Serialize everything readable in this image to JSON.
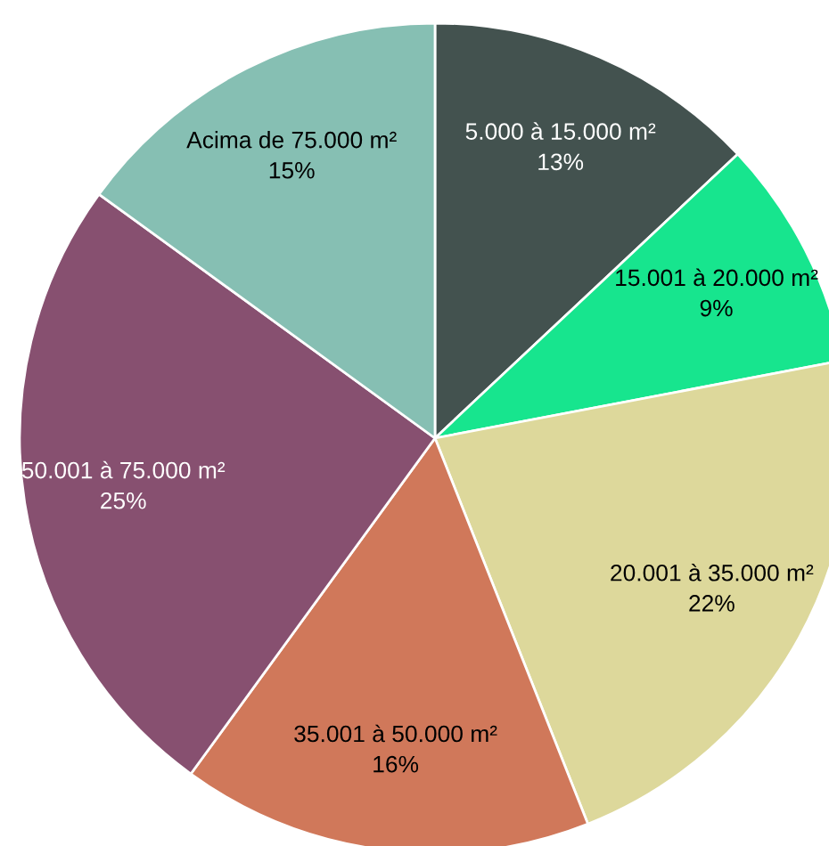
{
  "chart_data": {
    "type": "pie",
    "categories": [
      "5.000 à 15.000 m²",
      "15.001 à 20.000 m²",
      "20.001 à 35.000 m²",
      "35.001 à 50.000 m²",
      "50.001 à 75.000 m²",
      "Acima de 75.000 m²"
    ],
    "values": [
      13,
      9,
      22,
      16,
      25,
      15
    ],
    "value_labels": [
      "13%",
      "9%",
      "22%",
      "16%",
      "25%",
      "15%"
    ],
    "colors": [
      "#43524f",
      "#17e58e",
      "#ddd89b",
      "#d0785a",
      "#875070",
      "#86bfb3"
    ],
    "legend": false
  }
}
